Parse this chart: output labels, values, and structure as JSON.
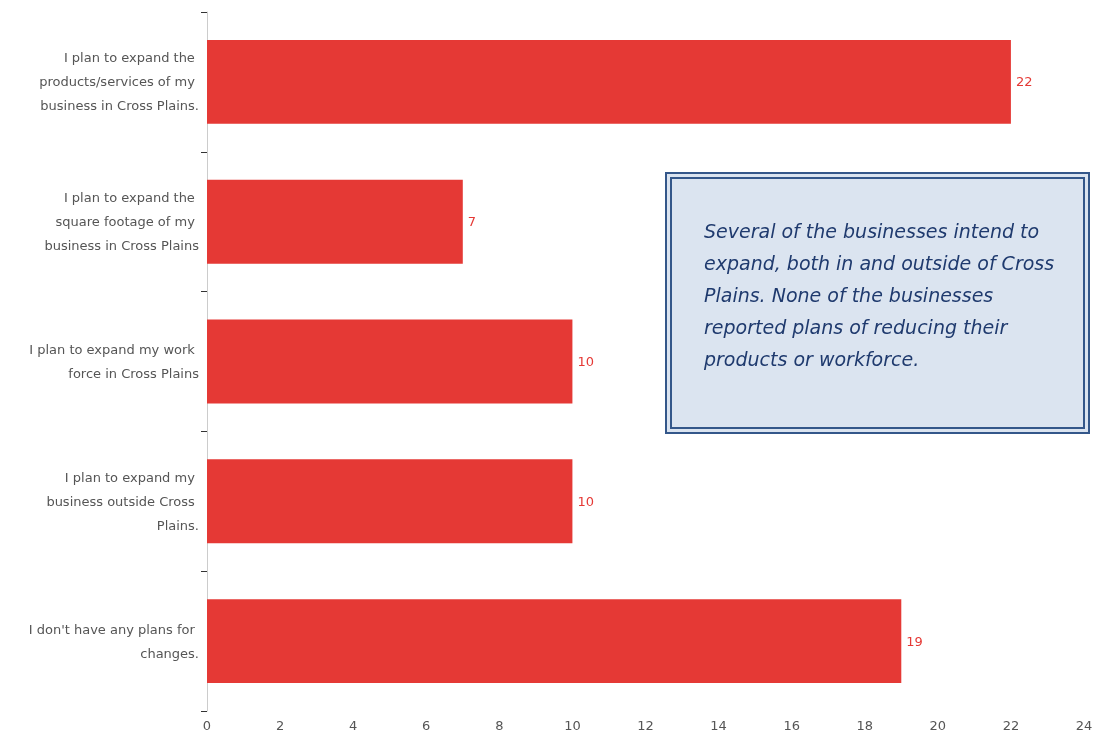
{
  "chart_data": {
    "type": "bar",
    "orientation": "horizontal",
    "categories": [
      "I plan to expand the products/services of my business in Cross Plains.",
      "I plan to expand the square footage of my business in Cross Plains",
      "I plan to expand my work force in Cross Plains",
      "I plan to expand my business outside Cross Plains.",
      "I don't have any plans for changes."
    ],
    "values": [
      22,
      7,
      10,
      10,
      19
    ],
    "color": "#e53935",
    "xlim": [
      0,
      24
    ],
    "xticks": [
      0,
      2,
      4,
      6,
      8,
      10,
      12,
      14,
      16,
      18,
      20,
      22,
      24
    ],
    "data_labels": true,
    "grid": false,
    "annotations": [
      "Several of the businesses intend to expand, both in and outside of Cross Plains. None of the businesses reported plans of reducing their products or workforce."
    ]
  }
}
